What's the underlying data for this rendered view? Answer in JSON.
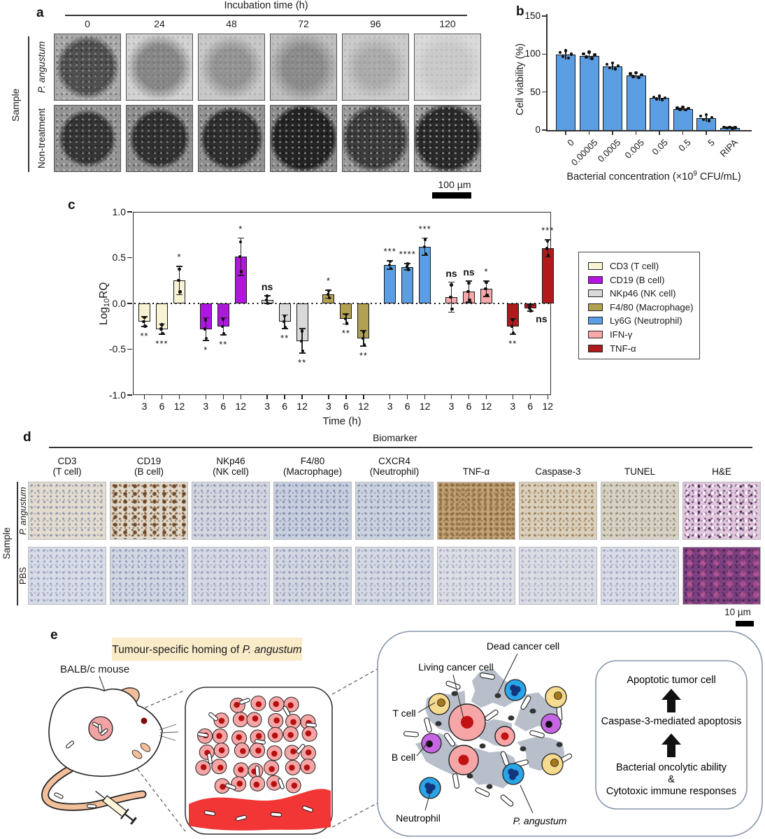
{
  "panel_a": {
    "label": "a",
    "header": "Incubation time (h)",
    "columns": [
      "0",
      "24",
      "48",
      "72",
      "96",
      "120"
    ],
    "row_group_label": "Sample",
    "rows": [
      "P. angustum",
      "Non-treatment"
    ],
    "scale_bar": "100 µm"
  },
  "panel_b": {
    "label": "b",
    "xlabel_pre": "Bacterial concentration (×10",
    "xlabel_sup": "9",
    "xlabel_post": " CFU/mL)"
  },
  "panel_c": {
    "label": "c",
    "ylabel_pre": "Log",
    "ylabel_sub": "10",
    "ylabel_post": "RQ"
  },
  "panel_d": {
    "label": "d",
    "header": "Biomarker",
    "columns": [
      {
        "line1": "CD3",
        "line2": "(T cell)"
      },
      {
        "line1": "CD19",
        "line2": "(B cell)"
      },
      {
        "line1": "NKp46",
        "line2": "(NK cell)"
      },
      {
        "line1": "F4/80",
        "line2": "(Macrophage)"
      },
      {
        "line1": "CXCR4",
        "line2": "(Neutrophil)"
      },
      {
        "line1": "TNF-α",
        "line2": ""
      },
      {
        "line1": "Caspase-3",
        "line2": ""
      },
      {
        "line1": "TUNEL",
        "line2": ""
      },
      {
        "line1": "H&E",
        "line2": ""
      }
    ],
    "row_group_label": "Sample",
    "rows": [
      "P. angustum",
      "PBS"
    ],
    "scale_bar": "10 µm",
    "tile_base_colors_p_angustum": [
      "#e3dccf",
      "#e0d8ca",
      "#d4d7e0",
      "#c8cfdf",
      "#ccd3e0",
      "#c2a478",
      "#d9d0bd",
      "#d8d2c4",
      "#e2c8de"
    ],
    "tile_base_colors_pbs": [
      "#d8dce8",
      "#d2d7e3",
      "#d6d9e4",
      "#d3d7e2",
      "#d5d9e4",
      "#dcdee6",
      "#dbdde5",
      "#d9dbe6",
      "#7c4080"
    ]
  },
  "panel_e": {
    "label": "e",
    "title_prefix": "Tumour-specific homing of ",
    "title_italic": "P. angustum",
    "mouse_label": "BALB/c mouse",
    "cell_labels": {
      "dead": "Dead cancer cell",
      "living": "Living cancer cell",
      "t": "T cell",
      "b": "B cell",
      "neutrophil": "Neutrophil",
      "bacterium": "P. angustum"
    },
    "pathway": {
      "top": "Apoptotic tumor cell",
      "middle": "Caspase-3-mediated apoptosis",
      "bottom1": "Bacterial oncolytic ability",
      "amp": "&",
      "bottom2": "Cytotoxic immune responses"
    }
  },
  "chart_data": [
    {
      "id": "panel_b_viability",
      "type": "bar",
      "categories": [
        "0",
        "0.00005",
        "0.0005",
        "0.005",
        "0.05",
        "0.5",
        "5",
        "RIPA"
      ],
      "values": [
        99,
        98,
        84,
        72,
        42,
        28,
        16,
        3
      ],
      "errors": [
        6,
        5,
        5,
        4,
        3,
        2,
        5,
        1
      ],
      "ylabel": "Cell viability (%)",
      "xlabel": "Bacterial concentration (×10⁹ CFU/mL)",
      "ylim": [
        0,
        150
      ],
      "yticks": [
        0,
        50,
        100,
        150
      ],
      "ytick_labels": [
        "0",
        "50",
        "100",
        "150"
      ],
      "bar_color": "#5b9ee4",
      "grid": false
    },
    {
      "id": "panel_c_log10rq",
      "type": "grouped-bar",
      "ylabel": "Log₁₀RQ",
      "xlabel": "Time (h)",
      "ylim": [
        -1.0,
        1.0
      ],
      "yticks": [
        1.0,
        0.5,
        0.0,
        -0.5,
        -1.0
      ],
      "ytick_labels": [
        "1.0",
        "0.5",
        "0.0",
        "-0.5",
        "-1.0"
      ],
      "group_times": [
        "3",
        "6",
        "12"
      ],
      "zero_line": "dotted",
      "legend_position": "right",
      "series": [
        {
          "name": "CD3 (T cell)",
          "color": "#f7f3d3",
          "values": [
            -0.2,
            -0.28,
            0.25
          ],
          "errors": [
            0.06,
            0.06,
            0.16
          ],
          "sig": [
            "**",
            "***",
            "*"
          ],
          "sig_pos": [
            "below",
            "below",
            "above"
          ]
        },
        {
          "name": "CD19 (B cell)",
          "color": "#ae17de",
          "values": [
            -0.28,
            -0.25,
            0.51
          ],
          "errors": [
            0.13,
            0.1,
            0.21
          ],
          "sig": [
            "*",
            "**",
            "*"
          ],
          "sig_pos": [
            "below",
            "below",
            "above"
          ]
        },
        {
          "name": "NKp46 (NK cell)",
          "color": "#d9d9d9",
          "values": [
            0.04,
            -0.2,
            -0.41
          ],
          "errors": [
            0.05,
            0.08,
            0.14
          ],
          "sig": [
            "ns",
            "**",
            "**"
          ],
          "sig_pos": [
            "above",
            "below",
            "below"
          ]
        },
        {
          "name": "F4/80 (Macrophage)",
          "color": "#b3a153",
          "values": [
            0.1,
            -0.17,
            -0.38
          ],
          "errors": [
            0.05,
            0.06,
            0.09
          ],
          "sig": [
            "*",
            "**",
            "**"
          ],
          "sig_pos": [
            "above",
            "below",
            "below"
          ]
        },
        {
          "name": "Ly6G (Neutrophil)",
          "color": "#5b9ee4",
          "values": [
            0.42,
            0.4,
            0.62
          ],
          "errors": [
            0.05,
            0.04,
            0.1
          ],
          "sig": [
            "***",
            "****",
            "***"
          ],
          "sig_pos": [
            "above",
            "above",
            "above"
          ]
        },
        {
          "name": "IFN-γ",
          "color": "#f7a8a8",
          "values": [
            0.07,
            0.13,
            0.16
          ],
          "errors": [
            0.17,
            0.12,
            0.09
          ],
          "sig": [
            "ns",
            "ns",
            "*"
          ],
          "sig_pos": [
            "above",
            "above",
            "above"
          ]
        },
        {
          "name": "TNF-α",
          "color": "#b01a1a",
          "values": [
            -0.25,
            -0.05,
            0.6
          ],
          "errors": [
            0.09,
            0.04,
            0.1
          ],
          "sig": [
            "**",
            "ns",
            "***"
          ],
          "sig_pos": [
            "below",
            "right",
            "above"
          ]
        }
      ]
    }
  ]
}
